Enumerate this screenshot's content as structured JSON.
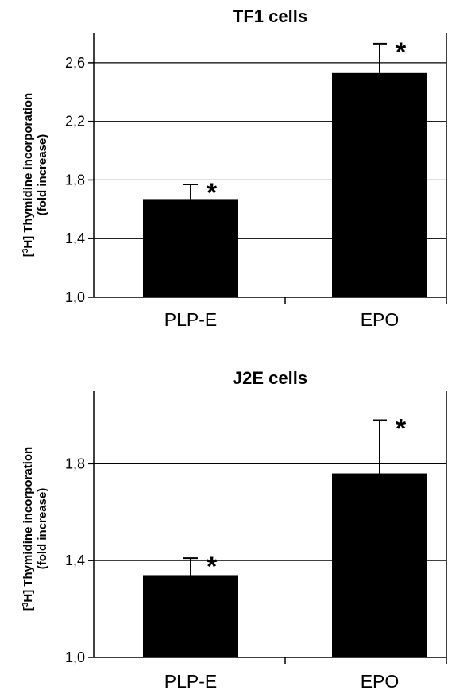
{
  "chart_data": [
    {
      "type": "bar",
      "title": "TF1 cells",
      "ylabel_line1_pre": "[",
      "ylabel_line1_sup": "3",
      "ylabel_line1_post": "H] Thymidine incorporation",
      "ylabel_line2": "(fold increase)",
      "categories": [
        "PLP-E",
        "EPO"
      ],
      "values": [
        1.67,
        2.53
      ],
      "errors": [
        0.1,
        0.2
      ],
      "significance": [
        "*",
        "*"
      ],
      "ylim": [
        1.0,
        2.8
      ],
      "yticks": [
        1.0,
        1.4,
        1.8,
        2.2,
        2.6
      ],
      "ytick_labels": [
        "1,0",
        "1,4",
        "1,8",
        "2,2",
        "2,6"
      ],
      "grid": true,
      "bar_color": "#000000"
    },
    {
      "type": "bar",
      "title": "J2E cells",
      "ylabel_line1_pre": "[",
      "ylabel_line1_sup": "3",
      "ylabel_line1_post": "H] Thymidine incorporation",
      "ylabel_line2": "(fold increase)",
      "categories": [
        "PLP-E",
        "EPO"
      ],
      "values": [
        1.34,
        1.76
      ],
      "errors": [
        0.07,
        0.22
      ],
      "significance": [
        "*",
        "*"
      ],
      "ylim": [
        1.0,
        2.1
      ],
      "yticks": [
        1.0,
        1.4,
        1.8
      ],
      "ytick_labels": [
        "1,0",
        "1,4",
        "1,8"
      ],
      "grid": true,
      "bar_color": "#000000"
    }
  ]
}
